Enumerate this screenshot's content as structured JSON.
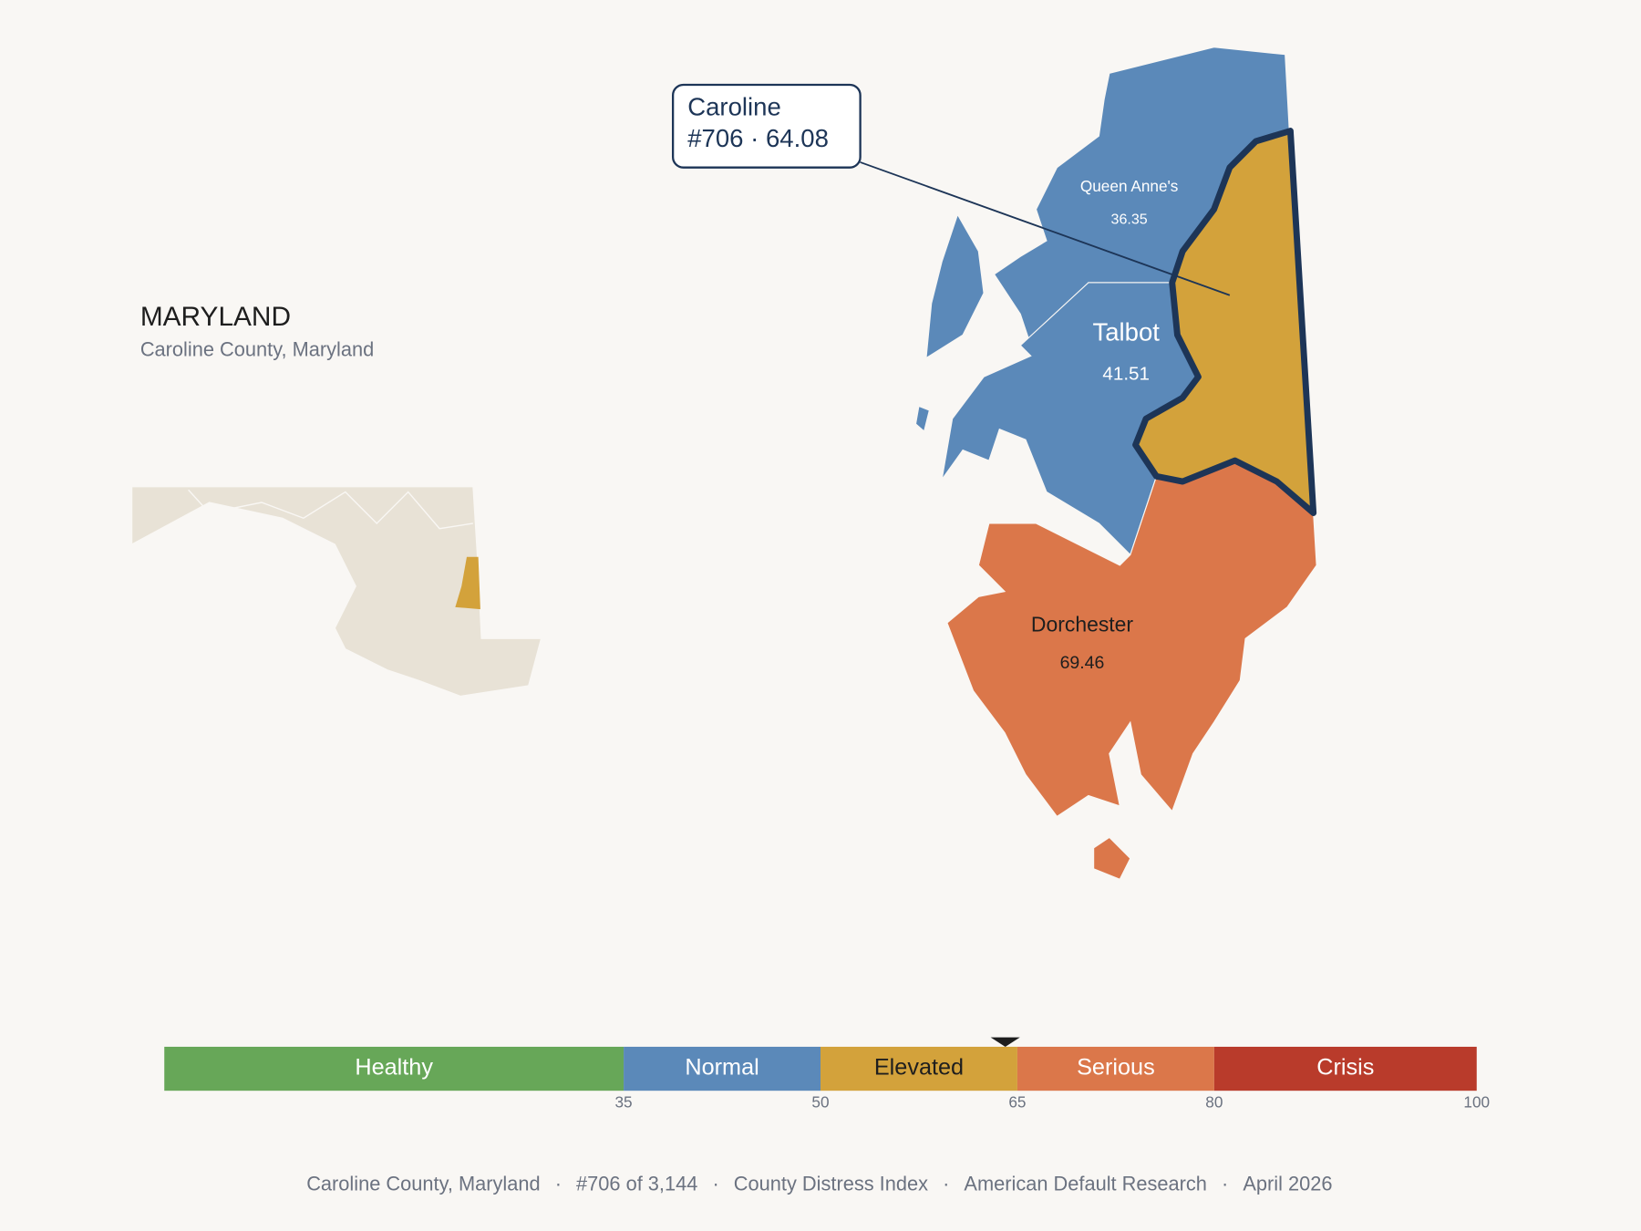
{
  "header": {
    "title": "MARYLAND",
    "subtitle": "Caroline County, Maryland"
  },
  "callout": {
    "name": "Caroline",
    "rank": "#706",
    "separator": "·",
    "score": 64.08
  },
  "counties": [
    {
      "name": "Queen Anne's",
      "value": 36.35
    },
    {
      "name": "Talbot",
      "value": 41.51
    },
    {
      "name": "Dorchester",
      "value": 69.46
    }
  ],
  "scale": {
    "range": [
      0,
      100
    ],
    "ticks": [
      35,
      50,
      65,
      80,
      100
    ],
    "segments": [
      {
        "label": "Healthy",
        "color": "#67a758",
        "label_color": "#ffffff"
      },
      {
        "label": "Normal",
        "color": "#5b89b9",
        "label_color": "#ffffff"
      },
      {
        "label": "Elevated",
        "color": "#d3a23b",
        "label_color": "#1e1e1e"
      },
      {
        "label": "Serious",
        "color": "#db774a",
        "label_color": "#ffffff"
      },
      {
        "label": "Crisis",
        "color": "#b93b2b",
        "label_color": "#ffffff"
      }
    ]
  },
  "footer": {
    "parts": [
      "Caroline County, Maryland",
      "#706 of 3,144",
      "County Distress Index",
      "American Default Research",
      "April 2026"
    ],
    "separator": "·"
  }
}
